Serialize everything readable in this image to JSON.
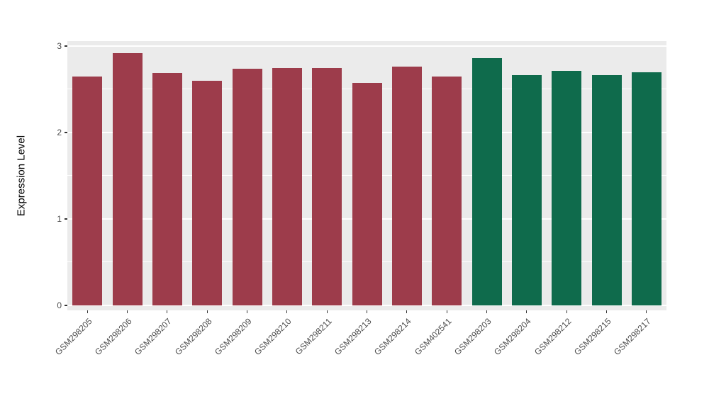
{
  "chart_data": {
    "type": "bar",
    "title": "",
    "xlabel": "",
    "ylabel": "Expression Level",
    "ylim": [
      0,
      3.1
    ],
    "yticks": [
      0,
      1,
      2,
      3
    ],
    "yticks_minor": [
      0.5,
      1.5,
      2.5
    ],
    "grid": "on",
    "legend": "none",
    "categories": [
      "GSM298205",
      "GSM298206",
      "GSM298207",
      "GSM298208",
      "GSM298209",
      "GSM298210",
      "GSM298211",
      "GSM298213",
      "GSM298214",
      "GSM402541",
      "GSM298203",
      "GSM298204",
      "GSM298212",
      "GSM298215",
      "GSM298217"
    ],
    "values": [
      2.65,
      2.92,
      2.69,
      2.6,
      2.74,
      2.75,
      2.75,
      2.57,
      2.76,
      2.65,
      2.86,
      2.66,
      2.71,
      2.66,
      2.7
    ],
    "group_index": [
      0,
      0,
      0,
      0,
      0,
      0,
      0,
      0,
      0,
      0,
      1,
      1,
      1,
      1,
      1
    ],
    "group_colors": [
      "#9D3C4B",
      "#0F6B4C"
    ]
  },
  "styles": {
    "panel_background": "#EBEBEB",
    "gridline_color": "#FFFFFF",
    "tick_label_color": "#4D4D4D",
    "axis_title_color": "#000000",
    "bar_color_left_group": "#9D3C4B",
    "bar_color_right_group": "#0F6B4C"
  }
}
